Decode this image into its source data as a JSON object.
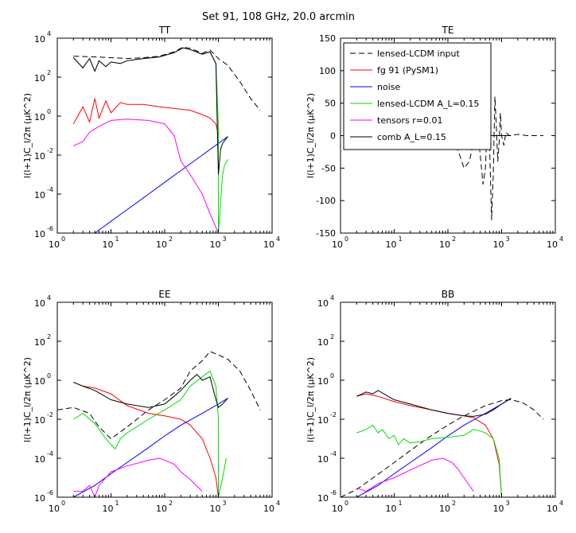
{
  "figure": {
    "title": "Set 91, 108 GHz, 20.0 arcmin",
    "colors": {
      "lensed_input": "#000000",
      "fg": "#ff0000",
      "noise": "#0000ff",
      "lensed_al": "#00dd00",
      "tensors": "#ff00ff",
      "comb": "#000000"
    }
  },
  "chart_data": [
    {
      "id": "TT",
      "type": "line",
      "title": "TT",
      "ylabel": "l(l+1)C_l/2π (μK^2)",
      "xscale": "log",
      "yscale": "log",
      "xlim": [
        1,
        10000
      ],
      "ylim": [
        1e-06,
        10000
      ],
      "series": [
        {
          "name": "lensed-LCDM input",
          "style": "dashed",
          "color": "#000000",
          "x": [
            2,
            5,
            10,
            20,
            40,
            80,
            150,
            220,
            300,
            500,
            700,
            1000,
            1500,
            2500,
            4000,
            6000
          ],
          "y": [
            1200,
            1100,
            1000,
            900,
            1000,
            1200,
            2000,
            3500,
            3000,
            1700,
            2500,
            900,
            400,
            60,
            8,
            2
          ]
        },
        {
          "name": "fg 91 (PySM1)",
          "color": "#ff0000",
          "x": [
            2,
            3,
            4,
            5,
            6,
            8,
            10,
            15,
            20,
            40,
            80,
            150,
            300,
            500,
            700,
            900,
            1000,
            1000
          ],
          "y": [
            0.4,
            3,
            0.5,
            8,
            0.8,
            6,
            1.5,
            5,
            4,
            4,
            3,
            2.5,
            2,
            1.2,
            0.8,
            0.4,
            0.1,
            1e-06
          ]
        },
        {
          "name": "noise",
          "color": "#0000ff",
          "x": [
            5,
            10,
            20,
            50,
            100,
            200,
            500,
            1000,
            1500
          ],
          "y": [
            1e-06,
            4e-06,
            1.6e-05,
            0.0001,
            0.0004,
            0.0016,
            0.01,
            0.04,
            0.09
          ]
        },
        {
          "name": "lensed-LCDM A_L=0.15",
          "color": "#00dd00",
          "x": [
            2,
            3,
            4,
            5,
            6,
            8,
            10,
            15,
            20,
            40,
            80,
            150,
            220,
            300,
            500,
            700,
            900,
            1000,
            1000,
            1200,
            1300,
            1500
          ],
          "y": [
            1000,
            300,
            900,
            200,
            700,
            350,
            600,
            500,
            700,
            900,
            1100,
            1800,
            3200,
            2600,
            1500,
            2000,
            500,
            0.3,
            1e-06,
            0.001,
            0.003,
            0.006
          ]
        },
        {
          "name": "tensors r=0.01",
          "color": "#ff00ff",
          "x": [
            2,
            3,
            4,
            6,
            10,
            20,
            50,
            100,
            150,
            200,
            300,
            500,
            700,
            1000
          ],
          "y": [
            0.03,
            0.05,
            0.15,
            0.3,
            0.6,
            0.7,
            0.6,
            0.4,
            0.1,
            0.005,
            0.001,
            0.0001,
            1e-05,
            1e-06
          ]
        },
        {
          "name": "comb A_L=0.15",
          "color": "#000000",
          "x": [
            2,
            3,
            4,
            5,
            6,
            8,
            10,
            15,
            20,
            40,
            80,
            150,
            220,
            300,
            500,
            700,
            900,
            1000,
            1100,
            1200,
            1500
          ],
          "y": [
            1000,
            300,
            900,
            200,
            700,
            350,
            600,
            500,
            700,
            900,
            1100,
            1800,
            3200,
            2600,
            1500,
            2000,
            500,
            0.001,
            0.02,
            0.04,
            0.09
          ]
        }
      ]
    },
    {
      "id": "TE",
      "type": "line",
      "title": "TE",
      "ylabel": "l(l+1)C_l/2π (μK^2)",
      "xscale": "log",
      "yscale": "linear",
      "xlim": [
        1,
        10000
      ],
      "ylim": [
        -150,
        150
      ],
      "yticks": [
        -150,
        -100,
        -50,
        0,
        50,
        100,
        150
      ],
      "series": [
        {
          "name": "lensed-LCDM input",
          "style": "dashed",
          "color": "#000000",
          "x": [
            2,
            10,
            50,
            100,
            150,
            200,
            250,
            300,
            350,
            400,
            450,
            500,
            550,
            600,
            650,
            700,
            750,
            800,
            850,
            900,
            950,
            1000,
            1100,
            1200,
            1400,
            2000,
            3000,
            6000
          ],
          "y": [
            0,
            1,
            3,
            2,
            -20,
            -50,
            -40,
            -10,
            20,
            -30,
            -75,
            -50,
            40,
            -20,
            -130,
            -60,
            60,
            10,
            -40,
            -10,
            35,
            0,
            -15,
            5,
            0,
            2,
            0,
            0
          ]
        },
        {
          "name": "comb A_L=0.15",
          "color": "#000000",
          "x": [
            2,
            10,
            50,
            100,
            200,
            500,
            1000,
            1500
          ],
          "y": [
            0,
            0,
            0,
            0,
            0,
            0,
            0,
            0
          ]
        }
      ]
    },
    {
      "id": "EE",
      "type": "line",
      "title": "EE",
      "ylabel": "l(l+1)C_l/2π (μK^2)",
      "xscale": "log",
      "yscale": "log",
      "xlim": [
        1,
        10000
      ],
      "ylim": [
        1e-06,
        10000
      ],
      "series": [
        {
          "name": "lensed-LCDM input",
          "style": "dashed",
          "color": "#000000",
          "x": [
            1,
            2,
            4,
            6,
            10,
            20,
            50,
            100,
            200,
            300,
            500,
            700,
            1000,
            1500,
            2500,
            4000,
            6000
          ],
          "y": [
            0.03,
            0.04,
            0.02,
            0.004,
            0.001,
            0.004,
            0.03,
            0.1,
            0.4,
            3,
            10,
            30,
            20,
            12,
            3,
            0.3,
            0.03
          ]
        },
        {
          "name": "fg 91 (PySM1)",
          "color": "#ff0000",
          "x": [
            2,
            3,
            5,
            10,
            20,
            50,
            100,
            200,
            300,
            500,
            700,
            900,
            1000
          ],
          "y": [
            0.8,
            0.5,
            0.4,
            0.2,
            0.05,
            0.02,
            0.015,
            0.01,
            0.005,
            0.001,
            0.0001,
            1e-05,
            1e-06
          ]
        },
        {
          "name": "noise",
          "color": "#0000ff",
          "x": [
            2,
            5,
            10,
            20,
            50,
            100,
            200,
            500,
            1000,
            1500
          ],
          "y": [
            1e-06,
            4e-06,
            1.6e-05,
            6e-05,
            0.00035,
            0.0014,
            0.005,
            0.02,
            0.06,
            0.12
          ]
        },
        {
          "name": "lensed-LCDM A_L=0.15",
          "color": "#00dd00",
          "x": [
            2,
            3,
            5,
            8,
            10,
            12,
            15,
            20,
            30,
            50,
            100,
            200,
            300,
            500,
            700,
            900,
            1000,
            1000,
            1200,
            1400
          ],
          "y": [
            0.01,
            0.02,
            0.006,
            0.001,
            0.0005,
            0.0003,
            0.001,
            0.002,
            0.004,
            0.01,
            0.03,
            0.1,
            0.5,
            1.5,
            3,
            0.5,
            0.01,
            1e-06,
            1e-05,
            0.0001
          ]
        },
        {
          "name": "tensors r=0.01",
          "color": "#ff00ff",
          "x": [
            2,
            3,
            4,
            5,
            6,
            8,
            10,
            20,
            50,
            80,
            150,
            200,
            300,
            500
          ],
          "y": [
            2e-06,
            2e-06,
            4e-06,
            1e-06,
            4e-06,
            1e-05,
            2e-05,
            4e-05,
            8e-05,
            0.0001,
            5e-05,
            2e-05,
            8e-06,
            2e-06
          ]
        },
        {
          "name": "comb A_L=0.15",
          "color": "#000000",
          "x": [
            2,
            3,
            5,
            10,
            20,
            50,
            100,
            150,
            200,
            300,
            400,
            500,
            700,
            900,
            1000,
            1200,
            1500
          ],
          "y": [
            0.8,
            0.5,
            0.3,
            0.1,
            0.06,
            0.04,
            0.06,
            0.15,
            0.3,
            1,
            2,
            1,
            1.5,
            0.1,
            0.04,
            0.06,
            0.12
          ]
        }
      ]
    },
    {
      "id": "BB",
      "type": "line",
      "title": "BB",
      "ylabel": "l(l+1)C_l/2π (μK^2)",
      "xscale": "log",
      "yscale": "log",
      "xlim": [
        1,
        10000
      ],
      "ylim": [
        1e-06,
        10000
      ],
      "series": [
        {
          "name": "lensed-LCDM input",
          "style": "dashed",
          "color": "#000000",
          "x": [
            1,
            2,
            5,
            10,
            20,
            50,
            100,
            200,
            500,
            1000,
            1500,
            2500,
            4000,
            6000
          ],
          "y": [
            1e-06,
            2.5e-06,
            1.5e-05,
            6e-05,
            0.00025,
            0.0015,
            0.005,
            0.015,
            0.05,
            0.09,
            0.1,
            0.07,
            0.03,
            0.01
          ]
        },
        {
          "name": "fg 91 (PySM1)",
          "color": "#ff0000",
          "x": [
            2,
            3,
            5,
            10,
            20,
            50,
            100,
            200,
            300,
            500,
            700,
            900,
            1000
          ],
          "y": [
            0.15,
            0.2,
            0.15,
            0.08,
            0.05,
            0.03,
            0.02,
            0.015,
            0.012,
            0.005,
            0.001,
            5e-05,
            1e-06
          ]
        },
        {
          "name": "noise",
          "color": "#0000ff",
          "x": [
            2,
            5,
            10,
            20,
            50,
            100,
            200,
            500,
            1000,
            1500
          ],
          "y": [
            1e-06,
            4e-06,
            1.6e-05,
            6e-05,
            0.00035,
            0.0014,
            0.005,
            0.02,
            0.06,
            0.12
          ]
        },
        {
          "name": "lensed-LCDM A_L=0.15",
          "color": "#00dd00",
          "x": [
            2,
            3,
            4,
            5,
            6,
            8,
            10,
            12,
            15,
            20,
            30,
            50,
            100,
            200,
            300,
            400,
            500,
            700,
            900,
            1000
          ],
          "y": [
            0.002,
            0.003,
            0.005,
            0.002,
            0.003,
            0.001,
            0.0015,
            0.0005,
            0.001,
            0.0006,
            0.0007,
            0.001,
            0.0012,
            0.0015,
            0.003,
            0.0025,
            0.002,
            0.001,
            0.0001,
            1e-06
          ]
        },
        {
          "name": "tensors r=0.01",
          "color": "#ff00ff",
          "x": [
            2,
            3,
            5,
            10,
            20,
            50,
            80,
            120,
            150,
            200,
            300
          ],
          "y": [
            3e-06,
            2e-06,
            5e-06,
            1e-05,
            2.5e-05,
            8e-05,
            0.0001,
            6e-05,
            3e-05,
            1e-05,
            2e-06
          ]
        },
        {
          "name": "comb A_L=0.15",
          "color": "#000000",
          "x": [
            2,
            3,
            4,
            5,
            10,
            20,
            50,
            100,
            200,
            300,
            500,
            700,
            1000,
            1500
          ],
          "y": [
            0.15,
            0.25,
            0.2,
            0.3,
            0.1,
            0.06,
            0.03,
            0.02,
            0.015,
            0.014,
            0.018,
            0.03,
            0.06,
            0.12
          ]
        }
      ]
    }
  ],
  "legend": {
    "placement": "inside TE panel, top-left",
    "entries": [
      {
        "label": "lensed-LCDM input",
        "style": "dashed",
        "color": "#000000"
      },
      {
        "label": "fg 91 (PySM1)",
        "style": "solid",
        "color": "#ff0000"
      },
      {
        "label": "noise",
        "style": "solid",
        "color": "#0000ff"
      },
      {
        "label": "lensed-LCDM A_L=0.15",
        "style": "solid",
        "color": "#00dd00"
      },
      {
        "label": "tensors r=0.01",
        "style": "solid",
        "color": "#ff00ff"
      },
      {
        "label": "comb A_L=0.15",
        "style": "solid",
        "color": "#000000"
      }
    ]
  }
}
